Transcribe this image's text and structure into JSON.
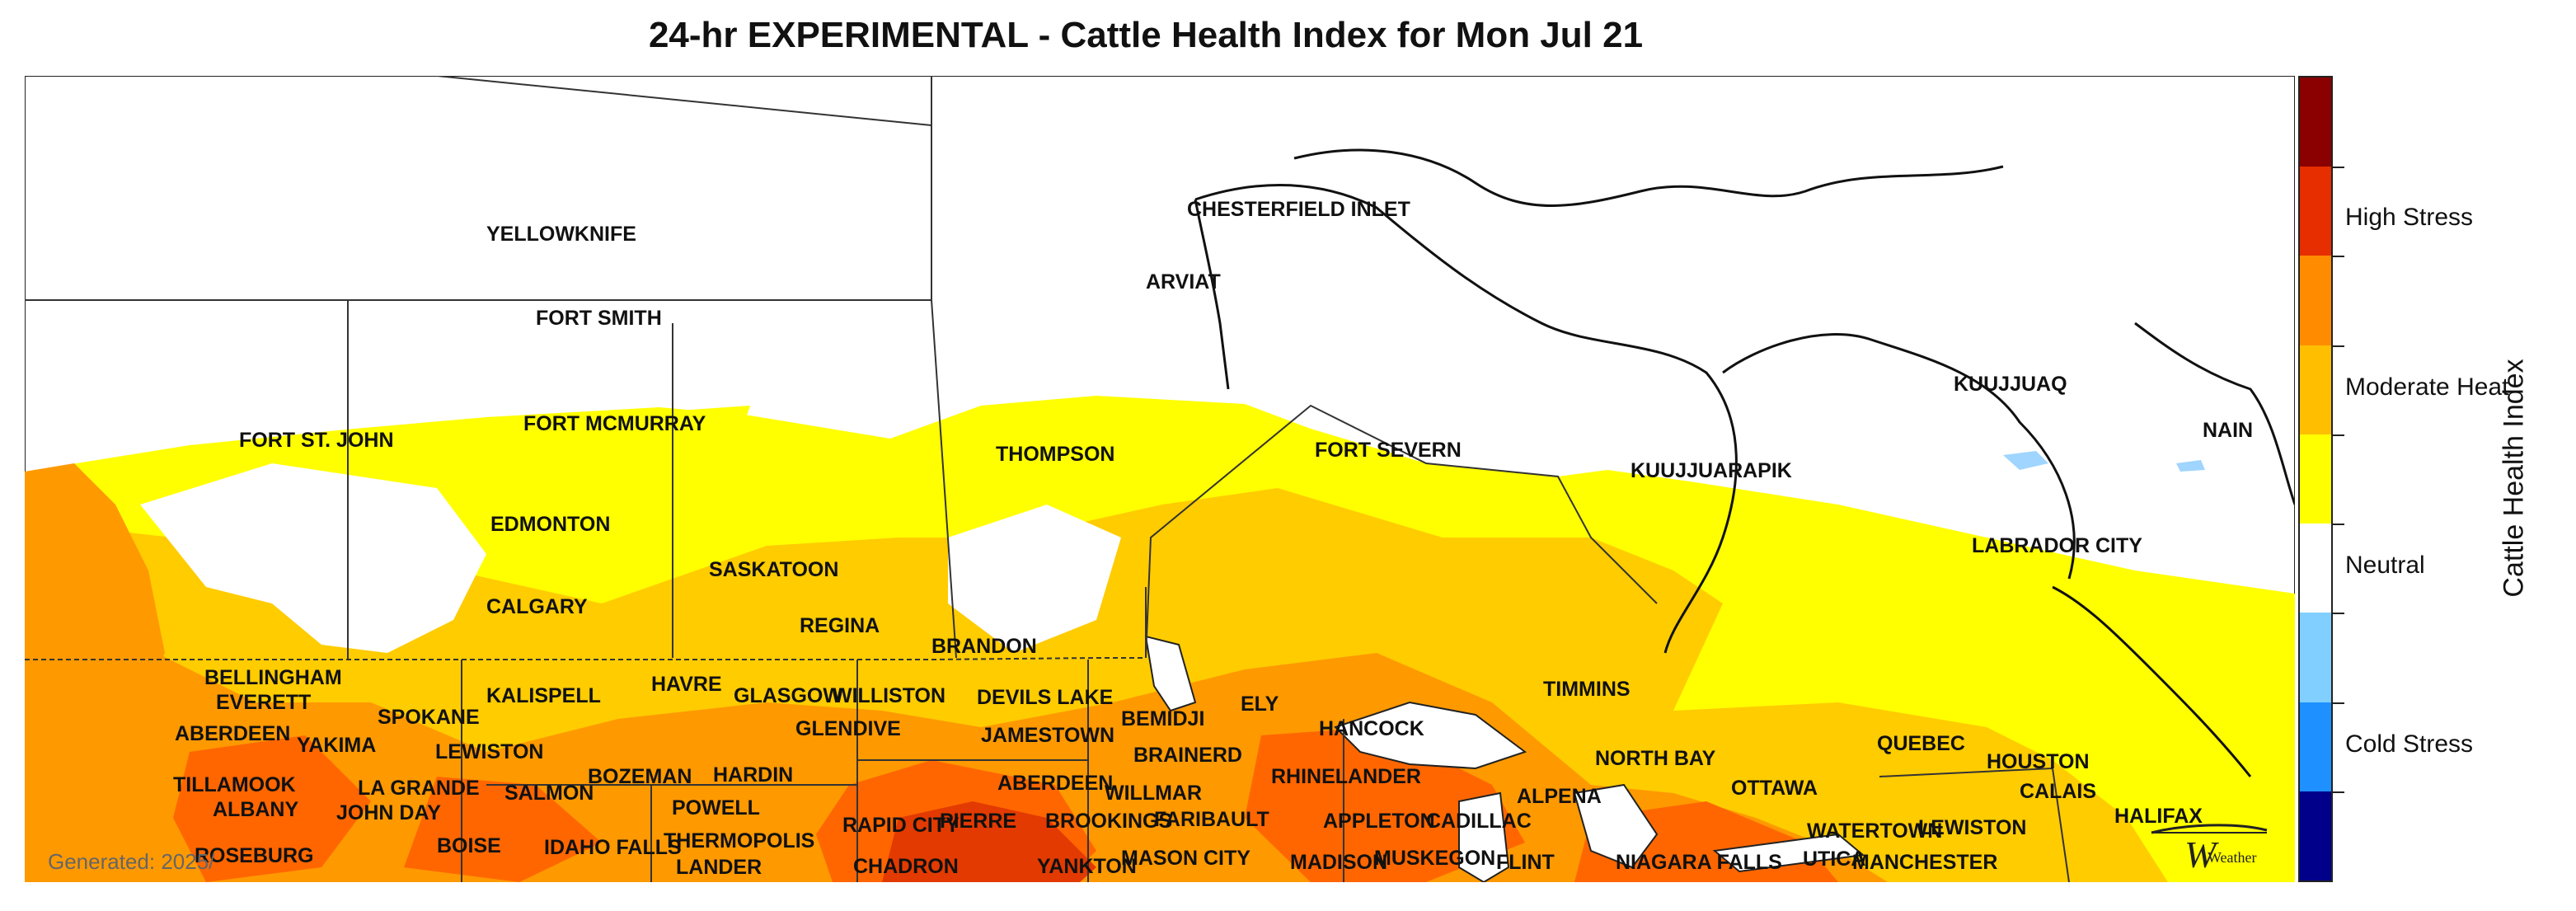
{
  "title": "24-hr EXPERIMENTAL - Cattle Health Index for Mon Jul 21",
  "footer": {
    "generated": "Generated: 2025/"
  },
  "colorbar": {
    "title": "Cattle Health Index",
    "colors": [
      "#8b0000",
      "#e62e00",
      "#ff8c00",
      "#ffbf00",
      "#ffff00",
      "#ffffff",
      "#80cfff",
      "#1e90ff",
      "#00008b"
    ],
    "labels": [
      "High Stress",
      "Moderate Heat",
      "Neutral",
      "Cold Stress"
    ]
  },
  "map_colors": {
    "neutral": "#ffffff",
    "mild": "#ffff00",
    "moderate": "#ffcc00",
    "moderate_high": "#ff9900",
    "high": "#ff6600",
    "severe": "#e23a00",
    "cold": "#9fd5ff"
  },
  "cities": [
    "YELLOWKNIFE",
    "CHESTERFIELD INLET",
    "ARVIAT",
    "FORT SMITH",
    "FORT ST. JOHN",
    "FORT MCMURRAY",
    "EDMONTON",
    "CALGARY",
    "SASKATOON",
    "REGINA",
    "BRANDON",
    "THOMPSON",
    "FORT SEVERN",
    "KUUJJUARAPIK",
    "KUUJJUAQ",
    "NAIN",
    "LABRADOR CITY",
    "TIMMINS",
    "NORTH BAY",
    "OTTAWA",
    "QUEBEC",
    "HOUSTON",
    "CALAIS",
    "HALIFAX",
    "LEWISTON",
    "MANCHESTER",
    "WATERTOWN",
    "UTICA",
    "NIAGARA FALLS",
    "FLINT",
    "ALPENA",
    "CADILLAC",
    "MUSKEGON",
    "APPLETON",
    "MADISON",
    "RHINELANDER",
    "HANCOCK",
    "ELY",
    "BEMIDJI",
    "BRAINERD",
    "WILLMAR",
    "FARIBAULT",
    "MASON CITY",
    "DEVILS LAKE",
    "JAMESTOWN",
    "ABERDEEN",
    "BROOKINGS",
    "PIERRE",
    "YANKTON",
    "RAPID CITY",
    "CHADRON",
    "WILLISTON",
    "GLASGOW",
    "GLENDIVE",
    "HAVRE",
    "HARDIN",
    "POWELL",
    "THERMOPOLIS",
    "LANDER",
    "KALISPELL",
    "BOZEMAN",
    "IDAHO FALLS",
    "SALMON",
    "SPOKANE",
    "LEWISTON",
    "YAKIMA",
    "LA GRANDE",
    "JOHN DAY",
    "BOISE",
    "BELLINGHAM",
    "EVERETT",
    "ABERDEEN",
    "TILLAMOOK",
    "ALBANY",
    "ROSEBURG"
  ],
  "logo": {
    "text": "Weather"
  }
}
